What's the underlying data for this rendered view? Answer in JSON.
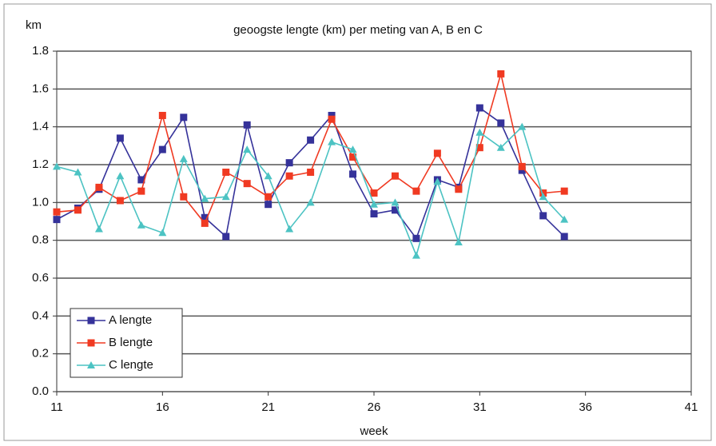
{
  "chart_data": {
    "type": "line",
    "title": "geoogste lengte (km) per meting  van A, B en C",
    "y_label": "km",
    "x_label": "week",
    "x": [
      11,
      12,
      13,
      14,
      15,
      16,
      17,
      18,
      19,
      20,
      21,
      22,
      23,
      24,
      25,
      26,
      27,
      28,
      29,
      30,
      31,
      32,
      33,
      34,
      35
    ],
    "series": [
      {
        "name": "A lengte",
        "color": "#35329a",
        "marker": "square",
        "values": [
          0.91,
          0.97,
          1.07,
          1.34,
          1.12,
          1.28,
          1.45,
          0.92,
          0.82,
          1.41,
          0.99,
          1.21,
          1.33,
          1.46,
          1.15,
          0.94,
          0.96,
          0.81,
          1.12,
          1.08,
          1.5,
          1.42,
          1.17,
          0.93,
          0.82
        ]
      },
      {
        "name": "B lengte",
        "color": "#f03a22",
        "marker": "square",
        "values": [
          0.95,
          0.96,
          1.08,
          1.01,
          1.06,
          1.46,
          1.03,
          0.89,
          1.16,
          1.1,
          1.03,
          1.14,
          1.16,
          1.44,
          1.24,
          1.05,
          1.14,
          1.06,
          1.26,
          1.07,
          1.29,
          1.68,
          1.19,
          1.05,
          1.06
        ]
      },
      {
        "name": "C lengte",
        "color": "#4cc3c3",
        "marker": "triangle",
        "values": [
          1.19,
          1.16,
          0.86,
          1.14,
          0.88,
          0.84,
          1.23,
          1.02,
          1.03,
          1.28,
          1.14,
          0.86,
          1.0,
          1.32,
          1.28,
          0.99,
          1.0,
          0.72,
          1.11,
          0.79,
          1.37,
          1.29,
          1.4,
          1.03,
          0.91
        ]
      }
    ],
    "xlim": [
      11,
      41
    ],
    "xticks": [
      11,
      16,
      21,
      26,
      31,
      36,
      41
    ],
    "ylim": [
      0,
      1.8
    ],
    "yticks": [
      {
        "value": 0,
        "label": "0.0"
      },
      0.2,
      0.4,
      0.6,
      0.8,
      {
        "value": 1,
        "label": "1.0"
      },
      1.2,
      1.4,
      1.6,
      1.8
    ],
    "grid": true,
    "legend": "lower-left"
  }
}
